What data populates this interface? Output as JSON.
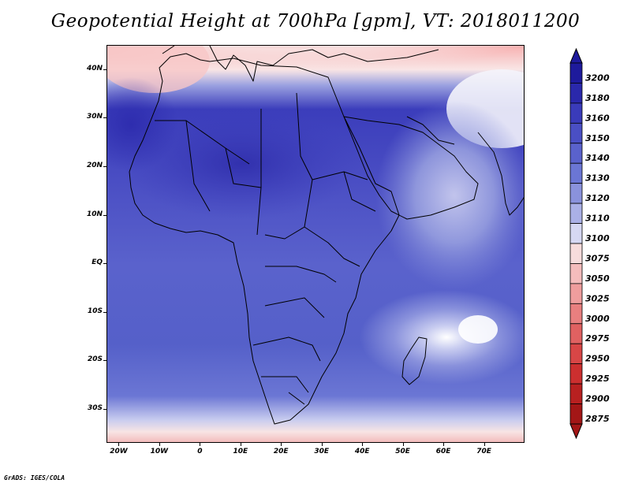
{
  "title": "Geopotential Height at 700hPa [gpm], VT: 2018011200",
  "credit": "GrADS: IGES/COLA",
  "map": {
    "lon_range": [
      -23,
      80
    ],
    "lat_range": [
      -37,
      45
    ],
    "lat_ticks": [
      {
        "value": 40,
        "label": "40N"
      },
      {
        "value": 30,
        "label": "30N"
      },
      {
        "value": 20,
        "label": "20N"
      },
      {
        "value": 10,
        "label": "10N"
      },
      {
        "value": 0,
        "label": "EQ"
      },
      {
        "value": -10,
        "label": "10S"
      },
      {
        "value": -20,
        "label": "20S"
      },
      {
        "value": -30,
        "label": "30S"
      }
    ],
    "lon_ticks": [
      {
        "value": -20,
        "label": "20W"
      },
      {
        "value": -10,
        "label": "10W"
      },
      {
        "value": 0,
        "label": "0"
      },
      {
        "value": 10,
        "label": "10E"
      },
      {
        "value": 20,
        "label": "20E"
      },
      {
        "value": 30,
        "label": "30E"
      },
      {
        "value": 40,
        "label": "40E"
      },
      {
        "value": 50,
        "label": "50E"
      },
      {
        "value": 60,
        "label": "60E"
      },
      {
        "value": 70,
        "label": "70E"
      }
    ]
  },
  "colorbar": {
    "levels": [
      "3200",
      "3180",
      "3160",
      "3150",
      "3140",
      "3130",
      "3120",
      "3110",
      "3100",
      "3075",
      "3050",
      "3025",
      "3000",
      "2975",
      "2950",
      "2925",
      "2900",
      "2875"
    ],
    "colors": [
      "#1e1a9c",
      "#2a28ab",
      "#3a3bba",
      "#4a4fc4",
      "#5a62cc",
      "#6b76d4",
      "#8a92dc",
      "#aab0e6",
      "#d6d8f3",
      "#f7dcdc",
      "#f4bcbc",
      "#ef9d9d",
      "#e87f7f",
      "#e06161",
      "#d84646",
      "#cc2f2f",
      "#b82020",
      "#a31616"
    ]
  }
}
